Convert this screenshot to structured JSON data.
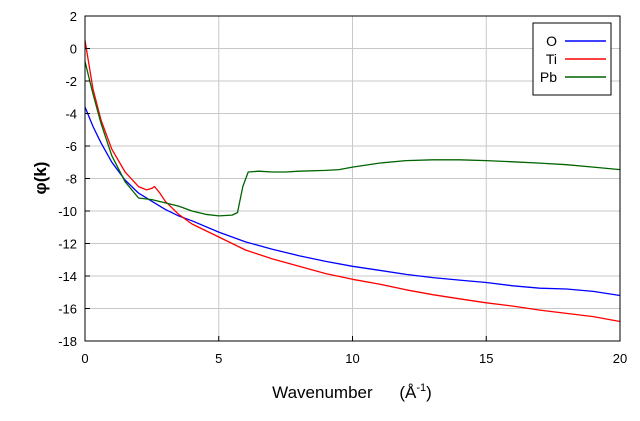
{
  "chart_data": {
    "type": "line",
    "title": "",
    "xlabel": "Wavenumber",
    "xlabel_unit_base": "(Å",
    "xlabel_unit_exp": "-1",
    "xlabel_unit_close": ")",
    "ylabel": "φ(k)",
    "xlim": [
      0,
      20
    ],
    "ylim": [
      -18,
      2
    ],
    "xticks": [
      0,
      5,
      10,
      15,
      20
    ],
    "yticks": [
      2,
      0,
      -2,
      -4,
      -6,
      -8,
      -10,
      -12,
      -14,
      -16,
      -18
    ],
    "grid": true,
    "legend_position": "top-right",
    "series": [
      {
        "name": "O",
        "color": "#0000ff",
        "x": [
          0,
          0.3,
          0.6,
          1.0,
          1.5,
          2.0,
          2.5,
          3.0,
          3.5,
          4.0,
          5.0,
          6.0,
          7.0,
          8.0,
          9.0,
          10.0,
          11.0,
          12.0,
          13.0,
          14.0,
          15.0,
          16.0,
          17.0,
          18.0,
          19.0,
          20.0
        ],
        "y": [
          -3.6,
          -4.8,
          -5.8,
          -7.0,
          -8.1,
          -8.9,
          -9.4,
          -9.9,
          -10.3,
          -10.6,
          -11.3,
          -11.9,
          -12.35,
          -12.75,
          -13.1,
          -13.4,
          -13.65,
          -13.9,
          -14.1,
          -14.25,
          -14.4,
          -14.6,
          -14.75,
          -14.8,
          -14.95,
          -15.2
        ]
      },
      {
        "name": "Ti",
        "color": "#ff0000",
        "x": [
          0,
          0.3,
          0.6,
          1.0,
          1.5,
          2.0,
          2.3,
          2.5,
          2.6,
          2.8,
          3.0,
          3.5,
          4.0,
          5.0,
          6.0,
          7.0,
          8.0,
          9.0,
          10.0,
          11.0,
          12.0,
          13.0,
          14.0,
          15.0,
          16.0,
          17.0,
          18.0,
          19.0,
          20.0
        ],
        "y": [
          0.5,
          -2.5,
          -4.4,
          -6.2,
          -7.6,
          -8.5,
          -8.7,
          -8.6,
          -8.5,
          -8.9,
          -9.4,
          -10.2,
          -10.8,
          -11.6,
          -12.4,
          -12.95,
          -13.4,
          -13.85,
          -14.2,
          -14.5,
          -14.85,
          -15.15,
          -15.4,
          -15.65,
          -15.85,
          -16.1,
          -16.3,
          -16.5,
          -16.8
        ]
      },
      {
        "name": "Pb",
        "color": "#006400",
        "x": [
          0,
          0.3,
          0.6,
          1.0,
          1.5,
          2.0,
          2.5,
          3.0,
          3.5,
          4.0,
          4.5,
          5.0,
          5.5,
          5.7,
          5.9,
          6.1,
          6.5,
          7.0,
          7.5,
          8.0,
          9.0,
          9.5,
          10.0,
          11.0,
          12.0,
          13.0,
          14.0,
          15.0,
          16.0,
          17.0,
          18.0,
          19.0,
          20.0
        ],
        "y": [
          -0.8,
          -2.8,
          -4.6,
          -6.6,
          -8.2,
          -9.2,
          -9.3,
          -9.5,
          -9.7,
          -10.0,
          -10.2,
          -10.3,
          -10.25,
          -10.1,
          -8.5,
          -7.6,
          -7.55,
          -7.6,
          -7.6,
          -7.55,
          -7.5,
          -7.45,
          -7.3,
          -7.05,
          -6.9,
          -6.85,
          -6.85,
          -6.9,
          -6.97,
          -7.05,
          -7.15,
          -7.3,
          -7.45
        ]
      }
    ]
  }
}
